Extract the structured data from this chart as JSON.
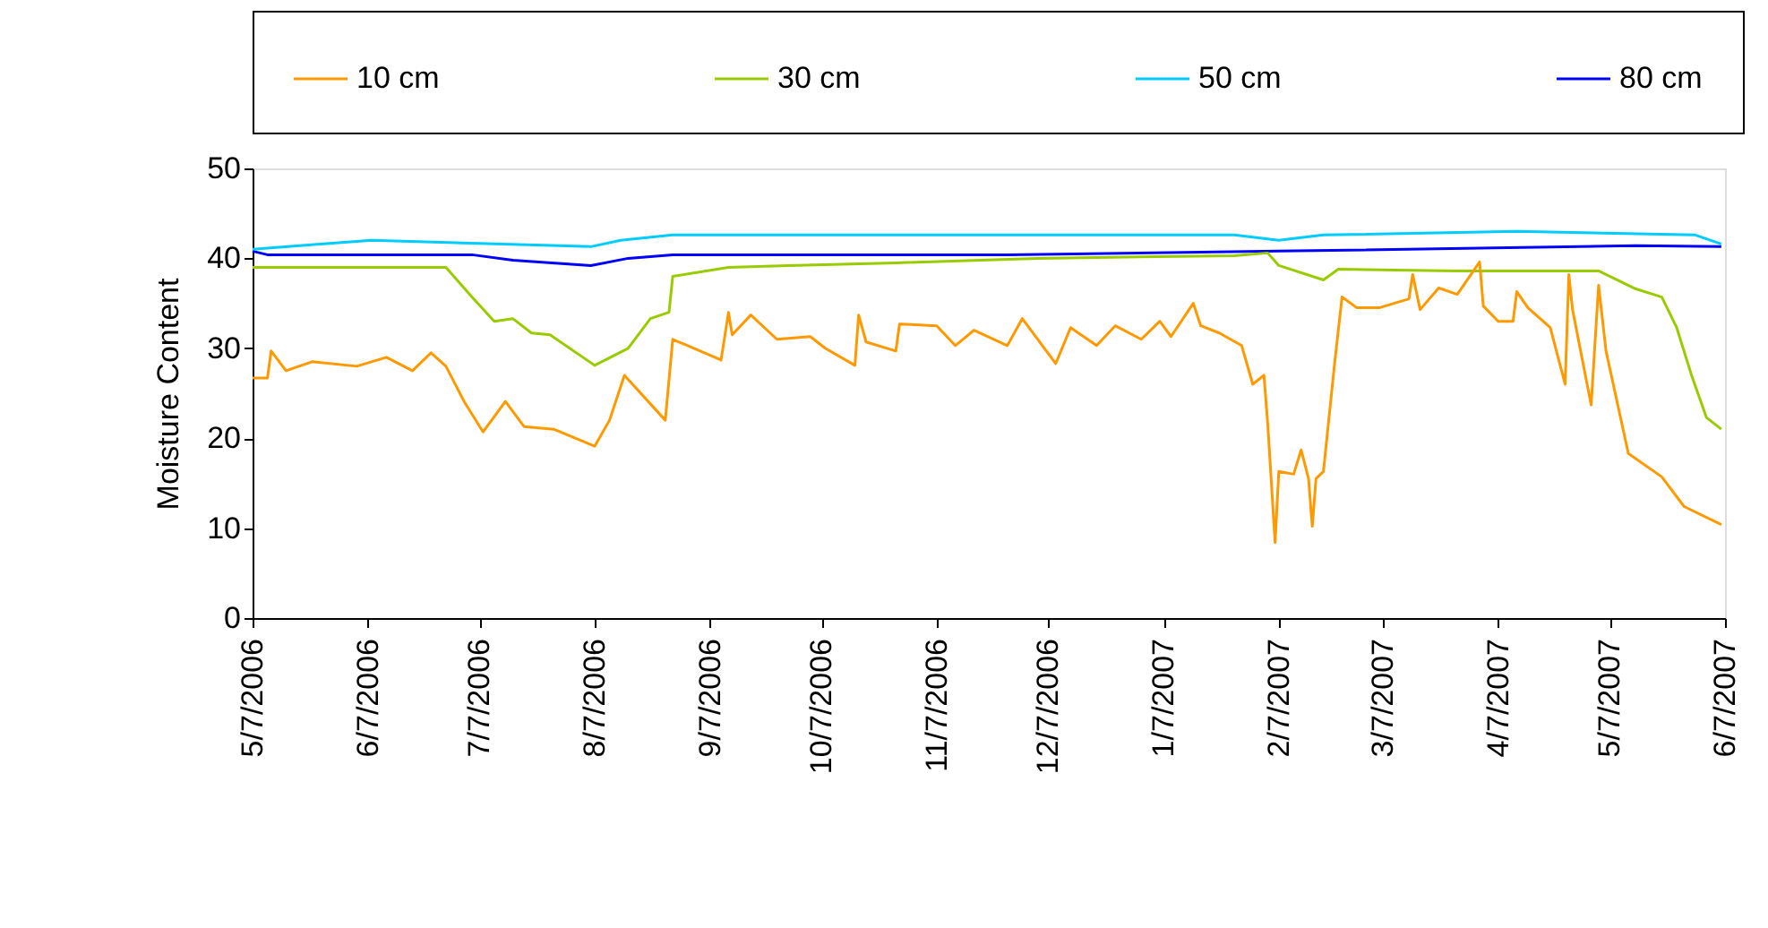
{
  "chart_data": {
    "type": "line",
    "ylabel": "Moisture Content",
    "legend": "top",
    "grid": false,
    "line_style": "solid",
    "marker": "none",
    "xlim": [
      "2006-05-07",
      "2007-06-07"
    ],
    "xticks": [
      {
        "value": "2006-05-07",
        "label": "5/7/2006"
      },
      {
        "value": "2006-06-07",
        "label": "6/7/2006"
      },
      {
        "value": "2006-07-07",
        "label": "7/7/2006"
      },
      {
        "value": "2006-08-07",
        "label": "8/7/2006"
      },
      {
        "value": "2006-09-07",
        "label": "9/7/2006"
      },
      {
        "value": "2006-10-07",
        "label": "10/7/2006"
      },
      {
        "value": "2006-11-07",
        "label": "11/7/2006"
      },
      {
        "value": "2006-12-07",
        "label": "12/7/2006"
      },
      {
        "value": "2007-01-07",
        "label": "1/7/2007"
      },
      {
        "value": "2007-02-07",
        "label": "2/7/2007"
      },
      {
        "value": "2007-03-07",
        "label": "3/7/2007"
      },
      {
        "value": "2007-04-07",
        "label": "4/7/2007"
      },
      {
        "value": "2007-05-07",
        "label": "5/7/2007"
      },
      {
        "value": "2007-06-07",
        "label": "6/7/2007"
      }
    ],
    "ylim": [
      0,
      50
    ],
    "yticks": [
      0,
      10,
      20,
      30,
      40,
      50
    ],
    "series": [
      {
        "name": "80 cm",
        "color": "#0000ff",
        "x": [
          "2006-05-07",
          "2006-05-11",
          "2006-07-05",
          "2006-07-16",
          "2006-08-06",
          "2006-08-16",
          "2006-08-28",
          "2006-11-26",
          "2007-02-07",
          "2007-05-14",
          "2007-06-06"
        ],
        "values": [
          40.8,
          40.4,
          40.4,
          39.8,
          39.2,
          40,
          40.4,
          40.4,
          40.8,
          41.4,
          41.3
        ]
      },
      {
        "name": "50 cm",
        "color": "#00ccff",
        "x": [
          "2006-05-07",
          "2006-05-26",
          "2006-06-08",
          "2006-08-06",
          "2006-08-14",
          "2006-08-28",
          "2007-01-26",
          "2007-02-07",
          "2007-02-19",
          "2007-04-12",
          "2007-05-30",
          "2007-06-06"
        ],
        "values": [
          41,
          41.6,
          42,
          41.3,
          42,
          42.6,
          42.6,
          42,
          42.6,
          43,
          42.6,
          41.6
        ]
      },
      {
        "name": "30 cm",
        "color": "#99cc00",
        "x": [
          "2006-05-07",
          "2006-06-28",
          "2006-07-05",
          "2006-07-11",
          "2006-07-16",
          "2006-07-21",
          "2006-07-26",
          "2006-08-07",
          "2006-08-16",
          "2006-08-22",
          "2006-08-27",
          "2006-08-28",
          "2006-09-12",
          "2006-09-28",
          "2006-10-27",
          "2006-12-04",
          "2007-01-26",
          "2007-02-04",
          "2007-02-07",
          "2007-02-19",
          "2007-02-23",
          "2007-03-27",
          "2007-05-04",
          "2007-05-14",
          "2007-05-21",
          "2007-05-25",
          "2007-05-29",
          "2007-06-02",
          "2007-06-06"
        ],
        "values": [
          39,
          39,
          35.7,
          33,
          33.3,
          31.7,
          31.5,
          28.1,
          30,
          33.3,
          34,
          38,
          39,
          39.2,
          39.5,
          40,
          40.3,
          40.6,
          39.2,
          37.6,
          38.8,
          38.6,
          38.6,
          36.6,
          35.7,
          32.3,
          27,
          22.3,
          21
        ]
      },
      {
        "name": "10 cm",
        "color": "#ff9900",
        "x": [
          "2006-05-07",
          "2006-05-11",
          "2006-05-12",
          "2006-05-16",
          "2006-05-23",
          "2006-06-04",
          "2006-06-12",
          "2006-06-19",
          "2006-06-24",
          "2006-06-28",
          "2006-07-03",
          "2006-07-08",
          "2006-07-14",
          "2006-07-19",
          "2006-07-27",
          "2006-08-07",
          "2006-08-11",
          "2006-08-15",
          "2006-08-26",
          "2006-08-28",
          "2006-09-10",
          "2006-09-12",
          "2006-09-13",
          "2006-09-18",
          "2006-09-25",
          "2006-10-04",
          "2006-10-08",
          "2006-10-16",
          "2006-10-17",
          "2006-10-19",
          "2006-10-27",
          "2006-10-28",
          "2006-11-07",
          "2006-11-12",
          "2006-11-17",
          "2006-11-26",
          "2006-11-30",
          "2006-12-09",
          "2006-12-13",
          "2006-12-20",
          "2006-12-25",
          "2007-01-01",
          "2007-01-06",
          "2007-01-09",
          "2007-01-15",
          "2007-01-17",
          "2007-01-22",
          "2007-01-28",
          "2007-01-31",
          "2007-02-03",
          "2007-02-04",
          "2007-02-06",
          "2007-02-07",
          "2007-02-11",
          "2007-02-13",
          "2007-02-15",
          "2007-02-16",
          "2007-02-17",
          "2007-02-19",
          "2007-02-22",
          "2007-02-24",
          "2007-02-28",
          "2007-03-06",
          "2007-03-14",
          "2007-03-15",
          "2007-03-17",
          "2007-03-22",
          "2007-03-27",
          "2007-04-02",
          "2007-04-03",
          "2007-04-07",
          "2007-04-11",
          "2007-04-12",
          "2007-04-15",
          "2007-04-21",
          "2007-04-25",
          "2007-04-26",
          "2007-04-27",
          "2007-05-02",
          "2007-05-04",
          "2007-05-06",
          "2007-05-12",
          "2007-05-21",
          "2007-05-27",
          "2007-06-06"
        ],
        "values": [
          26.7,
          26.7,
          29.7,
          27.5,
          28.5,
          28,
          29,
          27.5,
          29.5,
          28,
          24,
          20.7,
          24.1,
          21.3,
          21,
          19.1,
          22,
          27,
          22,
          31,
          28.7,
          34,
          31.5,
          33.7,
          31,
          31.3,
          30,
          28.1,
          33.7,
          30.7,
          29.7,
          32.7,
          32.5,
          30.3,
          32,
          30.3,
          33.3,
          28.3,
          32.3,
          30.3,
          32.5,
          31,
          33,
          31.3,
          35,
          32.5,
          31.7,
          30.3,
          26,
          27,
          21.7,
          8.4,
          16.3,
          16,
          18.7,
          15.5,
          10.2,
          15.5,
          16.3,
          28.3,
          35.7,
          34.5,
          34.5,
          35.5,
          38.2,
          34.3,
          36.7,
          36,
          39.6,
          34.7,
          33,
          33,
          36.3,
          34.5,
          32.3,
          26,
          38.2,
          34.3,
          23.7,
          37,
          29.7,
          18.3,
          15.7,
          12.4,
          10.4
        ]
      }
    ]
  }
}
